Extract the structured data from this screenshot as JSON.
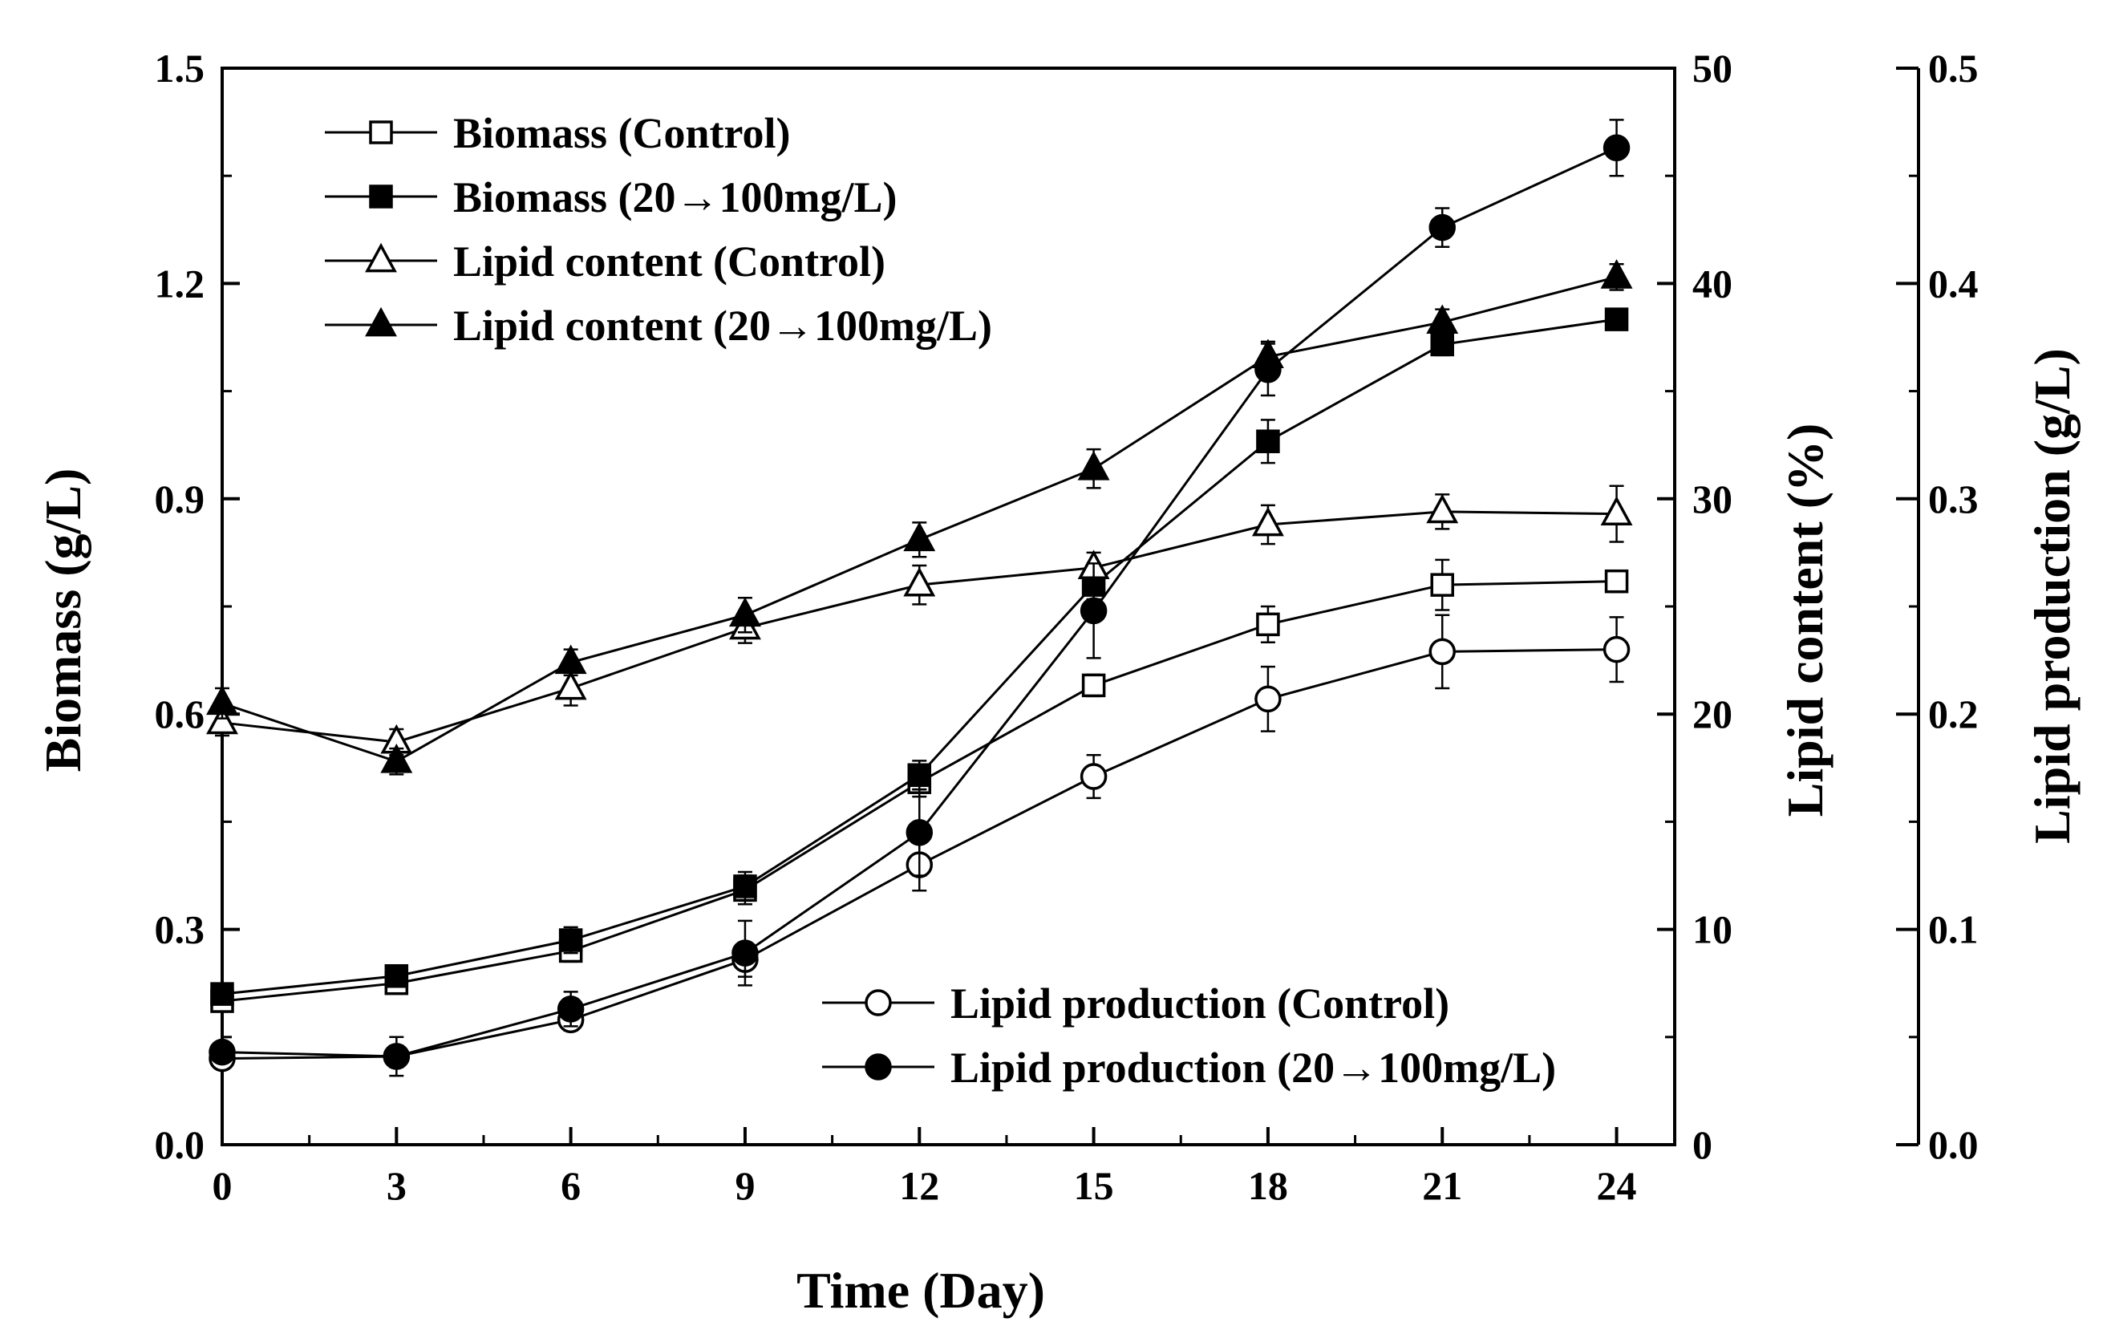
{
  "chart_data": {
    "type": "line",
    "title": "",
    "xlabel": "Time (Day)",
    "x": [
      0,
      3,
      6,
      9,
      12,
      15,
      18,
      21,
      24
    ],
    "x_ticks": [
      "0",
      "3",
      "6",
      "9",
      "12",
      "15",
      "18",
      "21",
      "24"
    ],
    "xlim": [
      0,
      25
    ],
    "axes": {
      "left": {
        "label": "Biomass (g/L)",
        "ylim": [
          0,
          1.5
        ],
        "ticks": [
          "0.0",
          "0.3",
          "0.6",
          "0.9",
          "1.2",
          "1.5"
        ]
      },
      "right1": {
        "label": "Lipid content (%)",
        "ylim": [
          0,
          50
        ],
        "ticks": [
          "0",
          "10",
          "20",
          "30",
          "40",
          "50"
        ]
      },
      "right2": {
        "label": "Lipid production (g/L)",
        "ylim": [
          0,
          0.5
        ],
        "ticks": [
          "0.0",
          "0.1",
          "0.2",
          "0.3",
          "0.4",
          "0.5"
        ]
      }
    },
    "series": [
      {
        "name": "Biomass (Control)",
        "axis": "left",
        "marker": "square",
        "filled": false,
        "values": [
          0.2,
          0.225,
          0.27,
          0.355,
          0.505,
          0.64,
          0.725,
          0.78,
          0.785
        ],
        "errors": [
          0.012,
          0.012,
          0.015,
          0.02,
          0.02,
          0.015,
          0.025,
          0.035,
          0.015
        ]
      },
      {
        "name": "Biomass (20→100mg/L)",
        "axis": "left",
        "marker": "square",
        "filled": true,
        "values": [
          0.21,
          0.235,
          0.285,
          0.36,
          0.515,
          0.78,
          0.98,
          1.115,
          1.15
        ],
        "errors": [
          0.012,
          0.015,
          0.018,
          0.02,
          0.02,
          0.02,
          0.03,
          0.015,
          0.012
        ]
      },
      {
        "name": "Lipid content (Control)",
        "axis": "right1",
        "marker": "triangle",
        "filled": false,
        "values": [
          19.6,
          18.7,
          21.2,
          24.0,
          26.0,
          26.8,
          28.8,
          29.4,
          29.3
        ],
        "errors": [
          0.6,
          0.6,
          0.8,
          0.7,
          0.9,
          0.7,
          0.9,
          0.8,
          1.3
        ]
      },
      {
        "name": "Lipid content (20→100mg/L)",
        "axis": "right1",
        "marker": "triangle",
        "filled": true,
        "values": [
          20.5,
          17.8,
          22.4,
          24.6,
          28.1,
          31.4,
          36.6,
          38.2,
          40.3
        ],
        "errors": [
          0.7,
          0.6,
          0.6,
          0.8,
          0.8,
          0.9,
          0.7,
          0.6,
          0.6
        ]
      },
      {
        "name": "Lipid production (Control)",
        "axis": "right2",
        "marker": "circle",
        "filled": false,
        "values": [
          0.04,
          0.041,
          0.058,
          0.086,
          0.13,
          0.171,
          0.207,
          0.229,
          0.23
        ],
        "errors": [
          0.004,
          0.005,
          0.005,
          0.008,
          0.012,
          0.01,
          0.015,
          0.017,
          0.015
        ]
      },
      {
        "name": "Lipid production (20→100mg/L)",
        "axis": "right2",
        "marker": "circle",
        "filled": true,
        "values": [
          0.043,
          0.041,
          0.063,
          0.089,
          0.145,
          0.248,
          0.36,
          0.426,
          0.463
        ],
        "errors": [
          0.004,
          0.009,
          0.008,
          0.015,
          0.02,
          0.022,
          0.012,
          0.009,
          0.013
        ]
      }
    ],
    "legend": [
      {
        "position": "top-left",
        "entries": [
          0,
          1,
          2,
          3
        ]
      },
      {
        "position": "bottom-right",
        "entries": [
          4,
          5
        ]
      }
    ],
    "grid": false
  },
  "colors": {
    "line": "#000000",
    "background": "#ffffff"
  }
}
